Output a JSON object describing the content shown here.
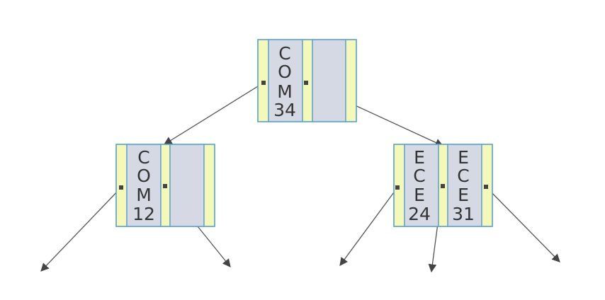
{
  "tree": {
    "root": {
      "keys": [
        [
          "C",
          "O",
          "M",
          "34"
        ],
        []
      ]
    },
    "left_child": {
      "keys": [
        [
          "C",
          "O",
          "M",
          "12"
        ],
        []
      ]
    },
    "right_child": {
      "keys": [
        [
          "E",
          "C",
          "E",
          "24"
        ],
        [
          "E",
          "C",
          "E",
          "31"
        ]
      ]
    }
  },
  "colors": {
    "pointer_cell": "#f4f9b8",
    "key_cell": "#d5d9e3",
    "border": "#5aa0d2",
    "arrow": "#555555"
  }
}
